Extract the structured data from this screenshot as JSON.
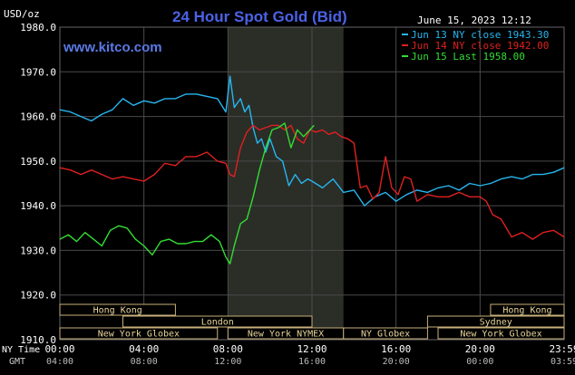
{
  "header": {
    "unit": "USD/oz",
    "title": "24 Hour Spot Gold (Bid)",
    "timestamp": "June 15, 2023 12:12",
    "website": "www.kitco.com"
  },
  "colors": {
    "background": "#000000",
    "plot_background": "#000000",
    "grid": "#4a4a4a",
    "highlight": "#2b2d27",
    "title": "#4b62e8",
    "website": "#5a7ae6",
    "text": "#ffffff",
    "session_bar": "#000000",
    "session_border": "#c8b07a",
    "session_text": "#e8d59a",
    "jun13": "#27b6ef",
    "jun14": "#e02020",
    "jun15": "#33dd33"
  },
  "legend": {
    "jun13": "Jun 13 NY close 1943.30",
    "jun14": "Jun 14 NY close 1942.00",
    "jun15": "Jun 15 Last 1958.00"
  },
  "sessions": [
    {
      "label": "Hong Kong",
      "start": 0.0,
      "end": 5.5,
      "row": 0
    },
    {
      "label": "Hong Kong",
      "start": 20.5,
      "end": 24.0,
      "row": 0
    },
    {
      "label": "London",
      "start": 3.0,
      "end": 12.0,
      "row": 1
    },
    {
      "label": "Sydney",
      "start": 17.5,
      "end": 24.0,
      "row": 1
    },
    {
      "label": "New York Globex",
      "start": 0.0,
      "end": 7.5,
      "row": 2
    },
    {
      "label": "New York NYMEX",
      "start": 8.0,
      "end": 13.5,
      "row": 2
    },
    {
      "label": "NY Globex",
      "start": 13.5,
      "end": 17.5,
      "row": 2
    },
    {
      "label": "New York Globex",
      "start": 18.0,
      "end": 24.0,
      "row": 2
    }
  ],
  "time_axis": {
    "ny_label": "NY Time",
    "gmt_label": "GMT",
    "ny_ticks": [
      "00:00",
      "04:00",
      "08:00",
      "12:00",
      "16:00",
      "20:00",
      "23:59"
    ],
    "gmt_ticks": [
      "04:00",
      "08:00",
      "12:00",
      "16:00",
      "20:00",
      "00:00",
      "03:59"
    ]
  },
  "chart_data": {
    "type": "line",
    "title": "24 Hour Spot Gold (Bid)",
    "ylabel": "USD/oz",
    "xlabel": "NY Time",
    "xlim": [
      0,
      24
    ],
    "ylim": [
      1910,
      1980
    ],
    "y_ticks": [
      "1910.0",
      "1920.0",
      "1930.0",
      "1940.0",
      "1950.0",
      "1960.0",
      "1970.0",
      "1980.0"
    ],
    "x_ticks": [
      0,
      4,
      8,
      12,
      16,
      20,
      24
    ],
    "grid": true,
    "legend_position": "top-right",
    "highlight_range": [
      8.0,
      13.5
    ],
    "series": [
      {
        "name": "Jun 13 NY close 1943.30",
        "color": "#27b6ef",
        "x": [
          0.0,
          0.5,
          1.0,
          1.5,
          2.0,
          2.5,
          3.0,
          3.5,
          4.0,
          4.5,
          5.0,
          5.5,
          6.0,
          6.5,
          7.0,
          7.5,
          7.9,
          8.1,
          8.3,
          8.6,
          8.8,
          9.0,
          9.2,
          9.4,
          9.6,
          9.8,
          10.0,
          10.3,
          10.6,
          10.9,
          11.2,
          11.5,
          11.8,
          12.0,
          12.5,
          13.0,
          13.5,
          14.0,
          14.5,
          15.0,
          15.5,
          16.0,
          16.5,
          17.0,
          17.5,
          18.0,
          18.5,
          19.0,
          19.5,
          20.0,
          20.5,
          21.0,
          21.5,
          22.0,
          22.5,
          23.0,
          23.5,
          24.0
        ],
        "y": [
          1961.5,
          1961.0,
          1960.0,
          1959.0,
          1960.5,
          1961.5,
          1964.0,
          1962.5,
          1963.5,
          1963.0,
          1964.0,
          1964.0,
          1965.0,
          1965.0,
          1964.5,
          1964.0,
          1961.0,
          1969.0,
          1962.0,
          1964.0,
          1961.0,
          1962.5,
          1957.5,
          1954.0,
          1955.0,
          1952.0,
          1955.0,
          1951.0,
          1950.0,
          1944.5,
          1947.0,
          1945.0,
          1946.0,
          1945.5,
          1944.0,
          1946.0,
          1943.0,
          1943.5,
          1940.0,
          1942.0,
          1943.0,
          1941.0,
          1942.5,
          1943.5,
          1943.0,
          1944.0,
          1944.5,
          1943.5,
          1945.0,
          1944.5,
          1945.0,
          1946.0,
          1946.5,
          1946.0,
          1947.0,
          1947.0,
          1947.5,
          1948.5
        ]
      },
      {
        "name": "Jun 14 NY close 1942.00",
        "color": "#e02020",
        "x": [
          0.0,
          0.5,
          1.0,
          1.5,
          2.0,
          2.5,
          3.0,
          3.5,
          4.0,
          4.5,
          5.0,
          5.5,
          6.0,
          6.5,
          7.0,
          7.5,
          7.9,
          8.1,
          8.3,
          8.6,
          8.9,
          9.2,
          9.5,
          9.8,
          10.1,
          10.4,
          10.7,
          11.0,
          11.3,
          11.6,
          11.9,
          12.2,
          12.5,
          12.8,
          13.1,
          13.4,
          13.7,
          14.0,
          14.3,
          14.6,
          14.9,
          15.2,
          15.5,
          15.8,
          16.1,
          16.4,
          16.7,
          17.0,
          17.5,
          18.0,
          18.5,
          19.0,
          19.5,
          20.0,
          20.3,
          20.6,
          21.0,
          21.5,
          22.0,
          22.5,
          23.0,
          23.5,
          24.0
        ],
        "y": [
          1948.5,
          1948.0,
          1947.0,
          1948.0,
          1947.0,
          1946.0,
          1946.5,
          1946.0,
          1945.5,
          1947.0,
          1949.5,
          1949.0,
          1951.0,
          1951.0,
          1952.0,
          1950.0,
          1949.5,
          1947.0,
          1946.5,
          1953.0,
          1956.5,
          1958.0,
          1957.0,
          1957.5,
          1958.0,
          1958.0,
          1957.0,
          1958.0,
          1955.0,
          1954.0,
          1957.0,
          1956.5,
          1957.0,
          1956.0,
          1956.5,
          1955.5,
          1955.0,
          1954.0,
          1944.0,
          1944.5,
          1941.5,
          1943.0,
          1951.0,
          1944.0,
          1942.5,
          1946.5,
          1946.0,
          1941.0,
          1942.5,
          1942.0,
          1942.0,
          1943.0,
          1942.0,
          1942.0,
          1941.0,
          1938.0,
          1937.0,
          1933.0,
          1934.0,
          1932.5,
          1934.0,
          1934.5,
          1933.0
        ]
      },
      {
        "name": "Jun 15 Last 1958.00",
        "color": "#33dd33",
        "x": [
          0.0,
          0.4,
          0.8,
          1.2,
          1.6,
          2.0,
          2.4,
          2.8,
          3.2,
          3.6,
          4.0,
          4.4,
          4.8,
          5.2,
          5.6,
          6.0,
          6.4,
          6.8,
          7.2,
          7.6,
          7.9,
          8.1,
          8.3,
          8.6,
          8.9,
          9.2,
          9.5,
          9.8,
          10.1,
          10.4,
          10.7,
          11.0,
          11.3,
          11.6,
          11.9,
          12.1
        ],
        "y": [
          1932.5,
          1933.5,
          1932.0,
          1934.0,
          1932.5,
          1931.0,
          1934.5,
          1935.5,
          1935.0,
          1932.5,
          1931.0,
          1929.0,
          1932.0,
          1932.5,
          1931.5,
          1931.5,
          1932.0,
          1932.0,
          1933.5,
          1932.0,
          1928.5,
          1927.0,
          1931.0,
          1936.0,
          1937.0,
          1942.0,
          1948.0,
          1953.0,
          1957.0,
          1957.5,
          1958.5,
          1953.0,
          1957.0,
          1955.5,
          1957.0,
          1958.0
        ]
      }
    ]
  }
}
